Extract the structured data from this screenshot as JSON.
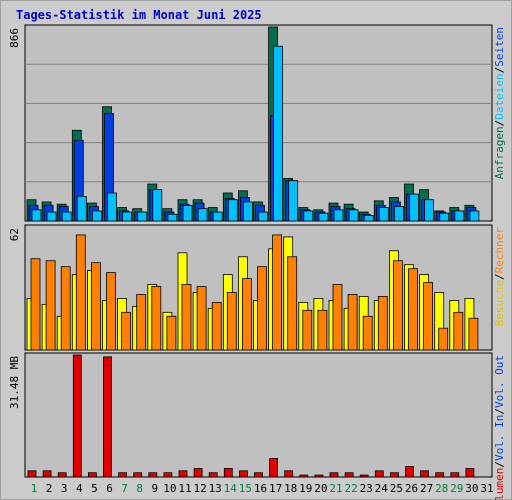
{
  "chart_data": {
    "type": "bar",
    "title": "Tages-Statistik im Monat Juni 2025",
    "categories": [
      "1",
      "2",
      "3",
      "4",
      "5",
      "6",
      "7",
      "8",
      "9",
      "10",
      "11",
      "12",
      "13",
      "14",
      "15",
      "16",
      "17",
      "18",
      "19",
      "20",
      "21",
      "22",
      "23",
      "24",
      "25",
      "26",
      "27",
      "28",
      "29",
      "30",
      "31"
    ],
    "weekend_days": [
      "1",
      "7",
      "8",
      "14",
      "15",
      "21",
      "22",
      "28",
      "29"
    ],
    "colors": {
      "anfragen": "#006f50",
      "dateien": "#00c0ff",
      "seiten": "#0040e0",
      "besuche": "#ffff00",
      "rechner": "#ff8000",
      "volumen": "#e00000",
      "weekend_day": "#008040",
      "weekday": "#000000",
      "panel_bg": "#c0c0c0",
      "frame_bg": "#cccccc",
      "gridline": "#808080"
    },
    "panels": [
      {
        "id": "hits",
        "ymax_label": "866",
        "ylim": [
          0,
          866
        ],
        "right_labels": [
          {
            "text": "Anfragen",
            "color": "#006f50"
          },
          {
            "text": "/",
            "color": "#000000"
          },
          {
            "text": "Dateien",
            "color": "#00c0ff"
          },
          {
            "text": "/",
            "color": "#000000"
          },
          {
            "text": "Seiten",
            "color": "#0040e0"
          }
        ],
        "series": [
          {
            "name": "Anfragen",
            "color": "#006f50",
            "values": [
              95,
              85,
              75,
              405,
              80,
              510,
              60,
              55,
              165,
              55,
              95,
              95,
              60,
              125,
              135,
              85,
              866,
              190,
              60,
              50,
              80,
              75,
              40,
              90,
              105,
              165,
              140,
              45,
              60,
              70,
              0
            ]
          },
          {
            "name": "Seiten",
            "color": "#0040e0",
            "values": [
              70,
              70,
              65,
              360,
              65,
              480,
              45,
              40,
              140,
              40,
              75,
              80,
              40,
              100,
              105,
              70,
              470,
              180,
              50,
              40,
              65,
              55,
              30,
              70,
              85,
              120,
              95,
              40,
              45,
              60,
              0
            ]
          },
          {
            "name": "Dateien",
            "color": "#00c0ff",
            "values": [
              50,
              40,
              40,
              110,
              45,
              125,
              40,
              40,
              140,
              30,
              70,
              55,
              40,
              95,
              85,
              40,
              780,
              180,
              45,
              35,
              50,
              50,
              25,
              60,
              65,
              120,
              95,
              35,
              45,
              45,
              0
            ]
          }
        ]
      },
      {
        "id": "visits",
        "ymax_label": "62",
        "ylim": [
          0,
          62
        ],
        "right_labels": [
          {
            "text": "Besuche",
            "color": "#e0c000"
          },
          {
            "text": "/",
            "color": "#000000"
          },
          {
            "text": "Rechner",
            "color": "#ff8000"
          }
        ],
        "series": [
          {
            "name": "Besuche",
            "color": "#ffff00",
            "values": [
              26,
              23,
              17,
              38,
              40,
              25,
              26,
              22,
              33,
              19,
              49,
              29,
              21,
              38,
              47,
              25,
              51,
              57,
              24,
              26,
              25,
              21,
              27,
              25,
              50,
              43,
              38,
              29,
              25,
              26,
              0
            ]
          },
          {
            "name": "Rechner",
            "color": "#ff8000",
            "values": [
              46,
              45,
              42,
              58,
              44,
              39,
              19,
              28,
              32,
              17,
              33,
              32,
              24,
              29,
              36,
              42,
              58,
              47,
              20,
              20,
              33,
              28,
              17,
              27,
              45,
              41,
              34,
              11,
              19,
              16,
              0
            ]
          }
        ]
      },
      {
        "id": "volume",
        "ymax_label": "31.48 MB",
        "ylim": [
          0,
          31.48
        ],
        "right_labels": [
          {
            "text": "Volumen",
            "color": "#e00000"
          },
          {
            "text": "/",
            "color": "#000000"
          },
          {
            "text": "Vol. In",
            "color": "#0040e0"
          },
          {
            "text": "/",
            "color": "#000000"
          },
          {
            "text": "Vol. Out",
            "color": "#0040e0"
          }
        ],
        "series": [
          {
            "name": "Volumen",
            "color": "#e00000",
            "values": [
              1.6,
              1.6,
              1.1,
              31.48,
              1.1,
              31.0,
              1.1,
              1.1,
              1.1,
              1.1,
              1.6,
              2.2,
              1.1,
              2.2,
              1.6,
              1.1,
              4.8,
              1.6,
              0.5,
              0.5,
              1.1,
              1.1,
              0.5,
              1.6,
              1.1,
              2.7,
              1.6,
              1.1,
              1.1,
              2.2,
              0
            ]
          }
        ]
      }
    ]
  }
}
